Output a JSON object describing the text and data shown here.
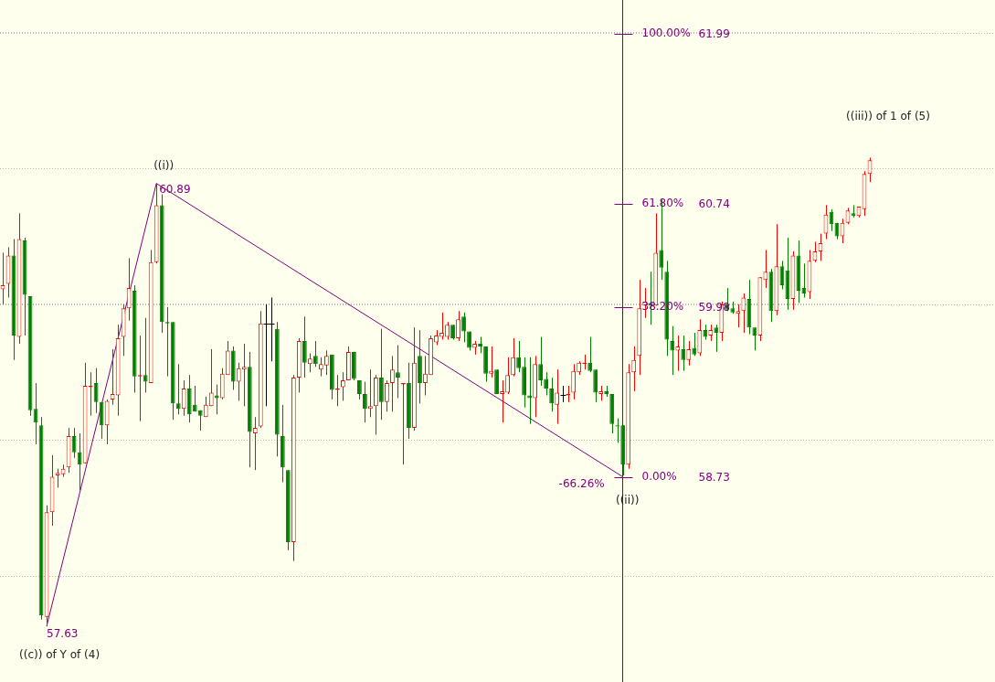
{
  "chart_data": {
    "type": "candlestick",
    "categories": [
      null,
      null,
      null,
      null,
      null,
      null,
      null,
      null,
      null,
      null,
      null,
      null,
      null,
      null,
      null,
      null,
      null,
      null,
      null,
      null,
      null,
      null,
      null,
      null,
      null,
      null,
      null,
      null,
      null,
      null,
      null,
      null,
      null,
      null,
      null,
      null,
      null,
      null,
      null,
      null,
      null,
      null,
      null,
      null,
      null,
      null,
      null,
      null,
      null,
      null,
      null,
      null,
      null,
      null,
      null,
      null,
      null,
      null,
      null,
      null,
      null,
      null,
      null,
      null,
      null,
      null,
      null,
      null,
      null,
      null,
      null,
      null,
      null,
      null,
      null,
      null,
      null,
      null,
      null,
      null,
      null,
      null,
      null,
      null,
      null,
      null,
      null,
      null,
      null,
      null,
      null,
      null,
      null,
      null,
      null,
      null,
      null,
      null,
      null,
      null,
      null,
      null,
      null,
      null,
      null,
      null,
      null,
      null,
      null,
      null,
      null,
      null,
      null,
      null,
      null,
      null,
      null,
      null,
      null,
      null,
      null,
      null,
      null,
      null,
      null,
      null,
      null,
      null,
      null,
      null,
      null,
      null,
      null,
      null,
      null,
      null,
      null,
      null,
      null,
      null,
      null,
      null,
      null,
      null,
      null,
      null,
      null,
      null,
      null,
      null,
      null,
      null,
      null,
      null,
      null,
      null,
      null,
      null,
      null
    ],
    "ohlc": [
      [
        60.11,
        60.38,
        60.0,
        60.14
      ],
      [
        60.15,
        60.42,
        60.05,
        60.36
      ],
      [
        60.36,
        60.48,
        59.59,
        59.77
      ],
      [
        59.76,
        60.67,
        59.71,
        60.48
      ],
      [
        60.47,
        60.49,
        59.77,
        60.07
      ],
      [
        60.06,
        60.06,
        59.18,
        59.22
      ],
      [
        59.23,
        59.42,
        58.97,
        59.13
      ],
      [
        59.11,
        59.17,
        57.68,
        57.71
      ],
      [
        57.7,
        58.52,
        57.63,
        58.47
      ],
      [
        58.47,
        58.89,
        58.37,
        58.73
      ],
      [
        58.74,
        58.79,
        58.65,
        58.76
      ],
      [
        58.75,
        58.82,
        58.73,
        58.79
      ],
      [
        58.8,
        59.09,
        58.76,
        59.03
      ],
      [
        59.03,
        59.09,
        58.87,
        58.91
      ],
      [
        58.91,
        59.05,
        58.63,
        58.82
      ],
      [
        58.83,
        59.57,
        58.83,
        59.4
      ],
      [
        59.39,
        59.5,
        59.18,
        59.4
      ],
      [
        59.42,
        59.53,
        59.2,
        59.28
      ],
      [
        59.28,
        59.28,
        59.01,
        59.11
      ],
      [
        59.11,
        59.3,
        58.97,
        59.29
      ],
      [
        59.3,
        59.67,
        59.26,
        59.34
      ],
      [
        59.33,
        59.85,
        59.18,
        59.75
      ],
      [
        59.76,
        60.0,
        59.62,
        59.97
      ],
      [
        59.97,
        60.34,
        59.88,
        60.12
      ],
      [
        60.1,
        60.14,
        59.35,
        59.47
      ],
      [
        59.47,
        59.77,
        59.14,
        59.48
      ],
      [
        59.48,
        59.9,
        59.35,
        59.43
      ],
      [
        59.42,
        60.4,
        59.42,
        60.31
      ],
      [
        60.31,
        60.89,
        60.3,
        60.73
      ],
      [
        60.73,
        60.81,
        59.79,
        59.87
      ],
      [
        59.87,
        59.98,
        59.47,
        59.86
      ],
      [
        59.87,
        59.87,
        59.15,
        59.27
      ],
      [
        59.27,
        59.56,
        59.19,
        59.23
      ],
      [
        59.23,
        59.44,
        59.18,
        59.38
      ],
      [
        59.38,
        59.48,
        59.13,
        59.19
      ],
      [
        59.26,
        59.4,
        59.21,
        59.21
      ],
      [
        59.22,
        59.22,
        59.07,
        59.18
      ],
      [
        59.17,
        59.32,
        59.17,
        59.26
      ],
      [
        59.25,
        59.67,
        59.25,
        59.35
      ],
      [
        59.33,
        59.41,
        59.19,
        59.31
      ],
      [
        59.31,
        59.53,
        59.3,
        59.49
      ],
      [
        59.48,
        59.73,
        59.48,
        59.66
      ],
      [
        59.66,
        59.69,
        59.37,
        59.43
      ],
      [
        59.43,
        59.57,
        59.29,
        59.53
      ],
      [
        59.52,
        59.71,
        59.25,
        59.54
      ],
      [
        59.54,
        59.65,
        58.8,
        59.06
      ],
      [
        59.05,
        59.17,
        58.78,
        59.09
      ],
      [
        59.1,
        59.95,
        59.09,
        59.86
      ],
      [
        59.86,
        60.0,
        59.25,
        59.86
      ],
      [
        59.86,
        60.05,
        59.58,
        59.86
      ],
      [
        59.82,
        59.87,
        58.88,
        59.04
      ],
      [
        59.03,
        59.26,
        58.69,
        58.8
      ],
      [
        58.78,
        58.78,
        58.19,
        58.25
      ],
      [
        58.25,
        59.48,
        58.11,
        59.46
      ],
      [
        59.46,
        59.75,
        59.35,
        59.73
      ],
      [
        59.73,
        59.91,
        59.46,
        59.57
      ],
      [
        59.56,
        59.64,
        59.5,
        59.6
      ],
      [
        59.62,
        59.73,
        59.54,
        59.56
      ],
      [
        59.52,
        59.61,
        59.47,
        59.56
      ],
      [
        59.55,
        59.66,
        59.48,
        59.62
      ],
      [
        59.63,
        59.63,
        59.3,
        59.37
      ],
      [
        59.37,
        59.48,
        59.25,
        59.38
      ],
      [
        59.39,
        59.5,
        59.29,
        59.44
      ],
      [
        59.44,
        59.69,
        59.44,
        59.65
      ],
      [
        59.65,
        59.65,
        59.44,
        59.45
      ],
      [
        59.44,
        59.44,
        59.3,
        59.34
      ],
      [
        59.34,
        59.43,
        59.13,
        59.23
      ],
      [
        59.23,
        59.52,
        59.17,
        59.25
      ],
      [
        59.25,
        59.48,
        59.04,
        59.46
      ],
      [
        59.46,
        59.82,
        59.15,
        59.28
      ],
      [
        59.28,
        59.44,
        59.21,
        59.42
      ],
      [
        59.42,
        59.62,
        59.21,
        59.52
      ],
      [
        59.5,
        59.7,
        59.31,
        59.46
      ],
      [
        59.41,
        59.42,
        58.82,
        59.42
      ],
      [
        59.42,
        59.57,
        59.01,
        59.09
      ],
      [
        59.09,
        59.83,
        59.07,
        59.57
      ],
      [
        59.62,
        59.81,
        59.27,
        59.42
      ],
      [
        59.42,
        59.62,
        59.33,
        59.49
      ],
      [
        59.48,
        59.77,
        59.48,
        59.75
      ],
      [
        59.72,
        59.81,
        59.7,
        59.77
      ],
      [
        59.76,
        59.94,
        59.74,
        59.79
      ],
      [
        59.76,
        59.87,
        59.74,
        59.85
      ],
      [
        59.85,
        59.85,
        59.74,
        59.75
      ],
      [
        59.75,
        59.95,
        59.73,
        59.89
      ],
      [
        59.91,
        59.94,
        59.72,
        59.8
      ],
      [
        59.8,
        59.8,
        59.66,
        59.68
      ],
      [
        59.68,
        59.73,
        59.63,
        59.71
      ],
      [
        59.71,
        59.76,
        59.64,
        59.69
      ],
      [
        59.69,
        59.69,
        59.43,
        59.49
      ],
      [
        59.49,
        59.69,
        59.46,
        59.51
      ],
      [
        59.52,
        59.52,
        59.34,
        59.34
      ],
      [
        59.34,
        59.44,
        59.13,
        59.36
      ],
      [
        59.35,
        59.61,
        59.34,
        59.48
      ],
      [
        59.48,
        59.75,
        59.47,
        59.61
      ],
      [
        59.61,
        59.73,
        59.5,
        59.53
      ],
      [
        59.54,
        59.61,
        59.24,
        59.33
      ],
      [
        59.33,
        59.61,
        59.12,
        59.31
      ],
      [
        59.31,
        59.62,
        59.17,
        59.56
      ],
      [
        59.56,
        59.76,
        59.4,
        59.44
      ],
      [
        59.45,
        59.5,
        59.33,
        59.38
      ],
      [
        59.38,
        59.46,
        59.21,
        59.27
      ],
      [
        59.26,
        59.52,
        59.12,
        59.35
      ],
      [
        59.33,
        59.4,
        59.28,
        59.33
      ],
      [
        59.33,
        59.4,
        59.28,
        59.34
      ],
      [
        59.35,
        59.56,
        59.3,
        59.51
      ],
      [
        59.5,
        59.58,
        59.48,
        59.57
      ],
      [
        59.56,
        59.63,
        59.52,
        59.57
      ],
      [
        59.57,
        59.76,
        59.5,
        59.51
      ],
      [
        59.52,
        59.52,
        59.28,
        59.35
      ],
      [
        59.34,
        59.4,
        59.29,
        59.36
      ],
      [
        59.36,
        59.4,
        59.32,
        59.34
      ],
      [
        59.34,
        59.34,
        59.05,
        59.12
      ],
      [
        59.11,
        59.16,
        58.98,
        59.1
      ],
      [
        59.11,
        59.11,
        58.74,
        58.82
      ],
      [
        58.82,
        59.56,
        58.79,
        59.5
      ],
      [
        59.5,
        59.69,
        59.36,
        59.59
      ],
      [
        59.62,
        60.18,
        59.48,
        59.97
      ],
      [
        59.99,
        60.12,
        59.9,
        60.02
      ],
      [
        60.01,
        60.24,
        59.85,
        59.99
      ],
      [
        59.99,
        60.67,
        59.99,
        60.38
      ],
      [
        60.4,
        60.77,
        60.18,
        60.27
      ],
      [
        60.24,
        60.32,
        59.62,
        59.74
      ],
      [
        59.73,
        59.84,
        59.48,
        59.66
      ],
      [
        59.66,
        59.77,
        59.51,
        59.69
      ],
      [
        59.67,
        59.77,
        59.51,
        59.59
      ],
      [
        59.59,
        59.73,
        59.55,
        59.67
      ],
      [
        59.68,
        59.79,
        59.62,
        59.63
      ],
      [
        59.64,
        59.89,
        59.62,
        59.81
      ],
      [
        59.81,
        59.85,
        59.74,
        59.76
      ],
      [
        59.77,
        59.85,
        59.73,
        59.81
      ],
      [
        59.83,
        59.85,
        59.65,
        59.79
      ],
      [
        59.79,
        60.02,
        59.73,
        60.0
      ],
      [
        60.0,
        60.12,
        59.95,
        59.96
      ],
      [
        59.97,
        60.02,
        59.93,
        59.94
      ],
      [
        59.93,
        60.0,
        59.83,
        59.95
      ],
      [
        59.95,
        60.08,
        59.79,
        60.05
      ],
      [
        60.04,
        60.18,
        59.78,
        59.83
      ],
      [
        59.83,
        59.83,
        59.66,
        59.77
      ],
      [
        59.77,
        60.2,
        59.73,
        60.2
      ],
      [
        60.18,
        60.4,
        60.12,
        60.24
      ],
      [
        60.24,
        60.26,
        59.87,
        59.95
      ],
      [
        59.95,
        60.59,
        59.92,
        60.28
      ],
      [
        60.28,
        60.32,
        60.11,
        60.14
      ],
      [
        60.25,
        60.49,
        59.96,
        60.04
      ],
      [
        60.04,
        60.39,
        59.96,
        60.36
      ],
      [
        60.36,
        60.47,
        60.01,
        60.1
      ],
      [
        60.12,
        60.3,
        60.05,
        60.08
      ],
      [
        60.09,
        60.4,
        60.04,
        60.32
      ],
      [
        60.32,
        60.46,
        60.31,
        60.39
      ],
      [
        60.39,
        60.52,
        60.32,
        60.45
      ],
      [
        60.52,
        60.73,
        60.48,
        60.66
      ],
      [
        60.68,
        60.7,
        60.54,
        60.59
      ],
      [
        60.6,
        60.6,
        60.48,
        60.5
      ],
      [
        60.5,
        60.63,
        60.45,
        60.6
      ],
      [
        60.6,
        60.71,
        60.59,
        60.69
      ],
      [
        60.67,
        60.73,
        60.64,
        60.65
      ],
      [
        60.65,
        60.72,
        60.64,
        60.72
      ],
      [
        60.7,
        60.98,
        60.65,
        60.96
      ],
      [
        60.96,
        61.08,
        60.9,
        61.06
      ]
    ],
    "colors": [
      "#ff0000",
      "#ff0000",
      "#008000",
      "#ff0000",
      "#008000",
      "#008000",
      "#008000",
      "#008000",
      "#ff0000",
      "#ff0000",
      "#ff0000",
      "#ff0000",
      "#ff0000",
      "#008000",
      "#008000",
      "#ff0000",
      "#ff0000",
      "#008000",
      "#008000",
      "#ff0000",
      "#ff0000",
      "#ff0000",
      "#ff0000",
      "#ff0000",
      "#008000",
      "#ff0000",
      "#008000",
      "#ff0000",
      "#ff0000",
      "#008000",
      "#008000",
      "#008000",
      "#008000",
      "#ff0000",
      "#008000",
      "#008000",
      "#008000",
      "#ff0000",
      "#ff0000",
      "#008000",
      "#ff0000",
      "#ff0000",
      "#008000",
      "#ff0000",
      "#ff0000",
      "#008000",
      "#ff0000",
      "#ff0000",
      "#000000",
      "#000000",
      "#008000",
      "#008000",
      "#008000",
      "#ff0000",
      "#ff0000",
      "#008000",
      "#ff0000",
      "#008000",
      "#ff0000",
      "#ff0000",
      "#008000",
      "#ff0000",
      "#ff0000",
      "#ff0000",
      "#008000",
      "#008000",
      "#008000",
      "#ff0000",
      "#ff0000",
      "#008000",
      "#ff0000",
      "#ff0000",
      "#008000",
      "#ff0000",
      "#008000",
      "#ff0000",
      "#008000",
      "#ff0000",
      "#ff0000",
      "#ff0000",
      "#ff0000",
      "#ff0000",
      "#008000",
      "#ff0000",
      "#008000",
      "#008000",
      "#ff0000",
      "#008000",
      "#008000",
      "#ff0000",
      "#008000",
      "#ff0000",
      "#ff0000",
      "#ff0000",
      "#008000",
      "#008000",
      "#008000",
      "#ff0000",
      "#008000",
      "#008000",
      "#008000",
      "#ff0000",
      "#000000",
      "#ff0000",
      "#ff0000",
      "#ff0000",
      "#ff0000",
      "#008000",
      "#008000",
      "#ff0000",
      "#008000",
      "#008000",
      "#008000",
      "#008000",
      "#ff0000",
      "#ff0000",
      "#ff0000",
      "#ff0000",
      "#008000",
      "#ff0000",
      "#008000",
      "#008000",
      "#008000",
      "#ff0000",
      "#008000",
      "#ff0000",
      "#008000",
      "#ff0000",
      "#008000",
      "#ff0000",
      "#008000",
      "#ff0000",
      "#008000",
      "#008000",
      "#ff0000",
      "#ff0000",
      "#008000",
      "#008000",
      "#ff0000",
      "#ff0000",
      "#008000",
      "#ff0000",
      "#008000",
      "#008000",
      "#ff0000",
      "#008000",
      "#008000",
      "#ff0000",
      "#ff0000",
      "#ff0000",
      "#ff0000",
      "#008000",
      "#008000",
      "#ff0000",
      "#ff0000",
      "#008000",
      "#ff0000",
      "#ff0000",
      "#ff0000"
    ],
    "series": [
      {
        "type": "line",
        "color": "#800080",
        "values": [
          null,
          null,
          null,
          null,
          null,
          null,
          null,
          null,
          57.63,
          null,
          null,
          null,
          null,
          null,
          null,
          null,
          null,
          null,
          null,
          null,
          null,
          null,
          null,
          null,
          null,
          null,
          null,
          null,
          60.89,
          null,
          null,
          null,
          null,
          null,
          null,
          null,
          null,
          null,
          null,
          null,
          null,
          null,
          null,
          null,
          null,
          null,
          null,
          null,
          null,
          null,
          null,
          null,
          null,
          null,
          null,
          null,
          null,
          null,
          null,
          null,
          null,
          null,
          null,
          null,
          null,
          null,
          null,
          null,
          null,
          null,
          null,
          null,
          null,
          null,
          null,
          null,
          null,
          null,
          null,
          null,
          null,
          null,
          null,
          null,
          null,
          null,
          null,
          null,
          null,
          null,
          null,
          null,
          null,
          null,
          null,
          null,
          null,
          null,
          null,
          null,
          null,
          null,
          null,
          null,
          null,
          null,
          null,
          null,
          null,
          null,
          null,
          null,
          null,
          58.73,
          null,
          null,
          null,
          null,
          null,
          null,
          null,
          null,
          null,
          null,
          null,
          null,
          null,
          null,
          null,
          null,
          null,
          null,
          null,
          null,
          null,
          null,
          null,
          null,
          null,
          null,
          null,
          null,
          null,
          null,
          null,
          null,
          null,
          null,
          null,
          null,
          null,
          null,
          null,
          null,
          null,
          null,
          null,
          null,
          null
        ],
        "value_labels": [
          null,
          null,
          null,
          null,
          null,
          null,
          null,
          null,
          "57.63",
          null,
          null,
          null,
          null,
          null,
          null,
          null,
          null,
          null,
          null,
          null,
          null,
          null,
          null,
          null,
          null,
          null,
          null,
          null,
          "60.89",
          null,
          null,
          null,
          null,
          null,
          null,
          null,
          null,
          null,
          null,
          null,
          null,
          null,
          null,
          null,
          null,
          null,
          null,
          null,
          null,
          null,
          null,
          null,
          null,
          null,
          null,
          null,
          null,
          null,
          null,
          null,
          null,
          null,
          null,
          null,
          null,
          null,
          null,
          null,
          null,
          null,
          null,
          null,
          null,
          null,
          null,
          null,
          null,
          null,
          null,
          null,
          null,
          null,
          null,
          null,
          null,
          null,
          null,
          null,
          null,
          null,
          null,
          null,
          null,
          null,
          null,
          null,
          null,
          null,
          null,
          null,
          null,
          null,
          null,
          null,
          null,
          null,
          null,
          null,
          null,
          null,
          null,
          null,
          null,
          null,
          null,
          null,
          null,
          null,
          null,
          null,
          null,
          null,
          null,
          null,
          null,
          null,
          null,
          null,
          null,
          null,
          null,
          null,
          null,
          null,
          null,
          null,
          null,
          null,
          null,
          null,
          null,
          null,
          null,
          null,
          null,
          null,
          null,
          null,
          null,
          null,
          null,
          null,
          null,
          null,
          null,
          null,
          null,
          null,
          null
        ]
      }
    ],
    "ylim": [
      57.22,
      62.24
    ],
    "yticks": [
      {
        "value": 58,
        "label": null
      },
      58.73,
      {
        "value": 59,
        "label": null
      },
      59.98,
      {
        "value": 60,
        "label": null
      },
      60.74,
      {
        "value": 61,
        "label": null
      },
      61.99,
      {
        "value": 62,
        "label": null
      }
    ],
    "grid": "y",
    "tick_labels": "y",
    "annotations": [
      "((c)) of Y of (4)",
      "((i))",
      "((ii))",
      "((iii)) of 1 of (5)",
      "-66.26%",
      "100.00%",
      "61.80%",
      "38.20%",
      "0.00%"
    ]
  }
}
